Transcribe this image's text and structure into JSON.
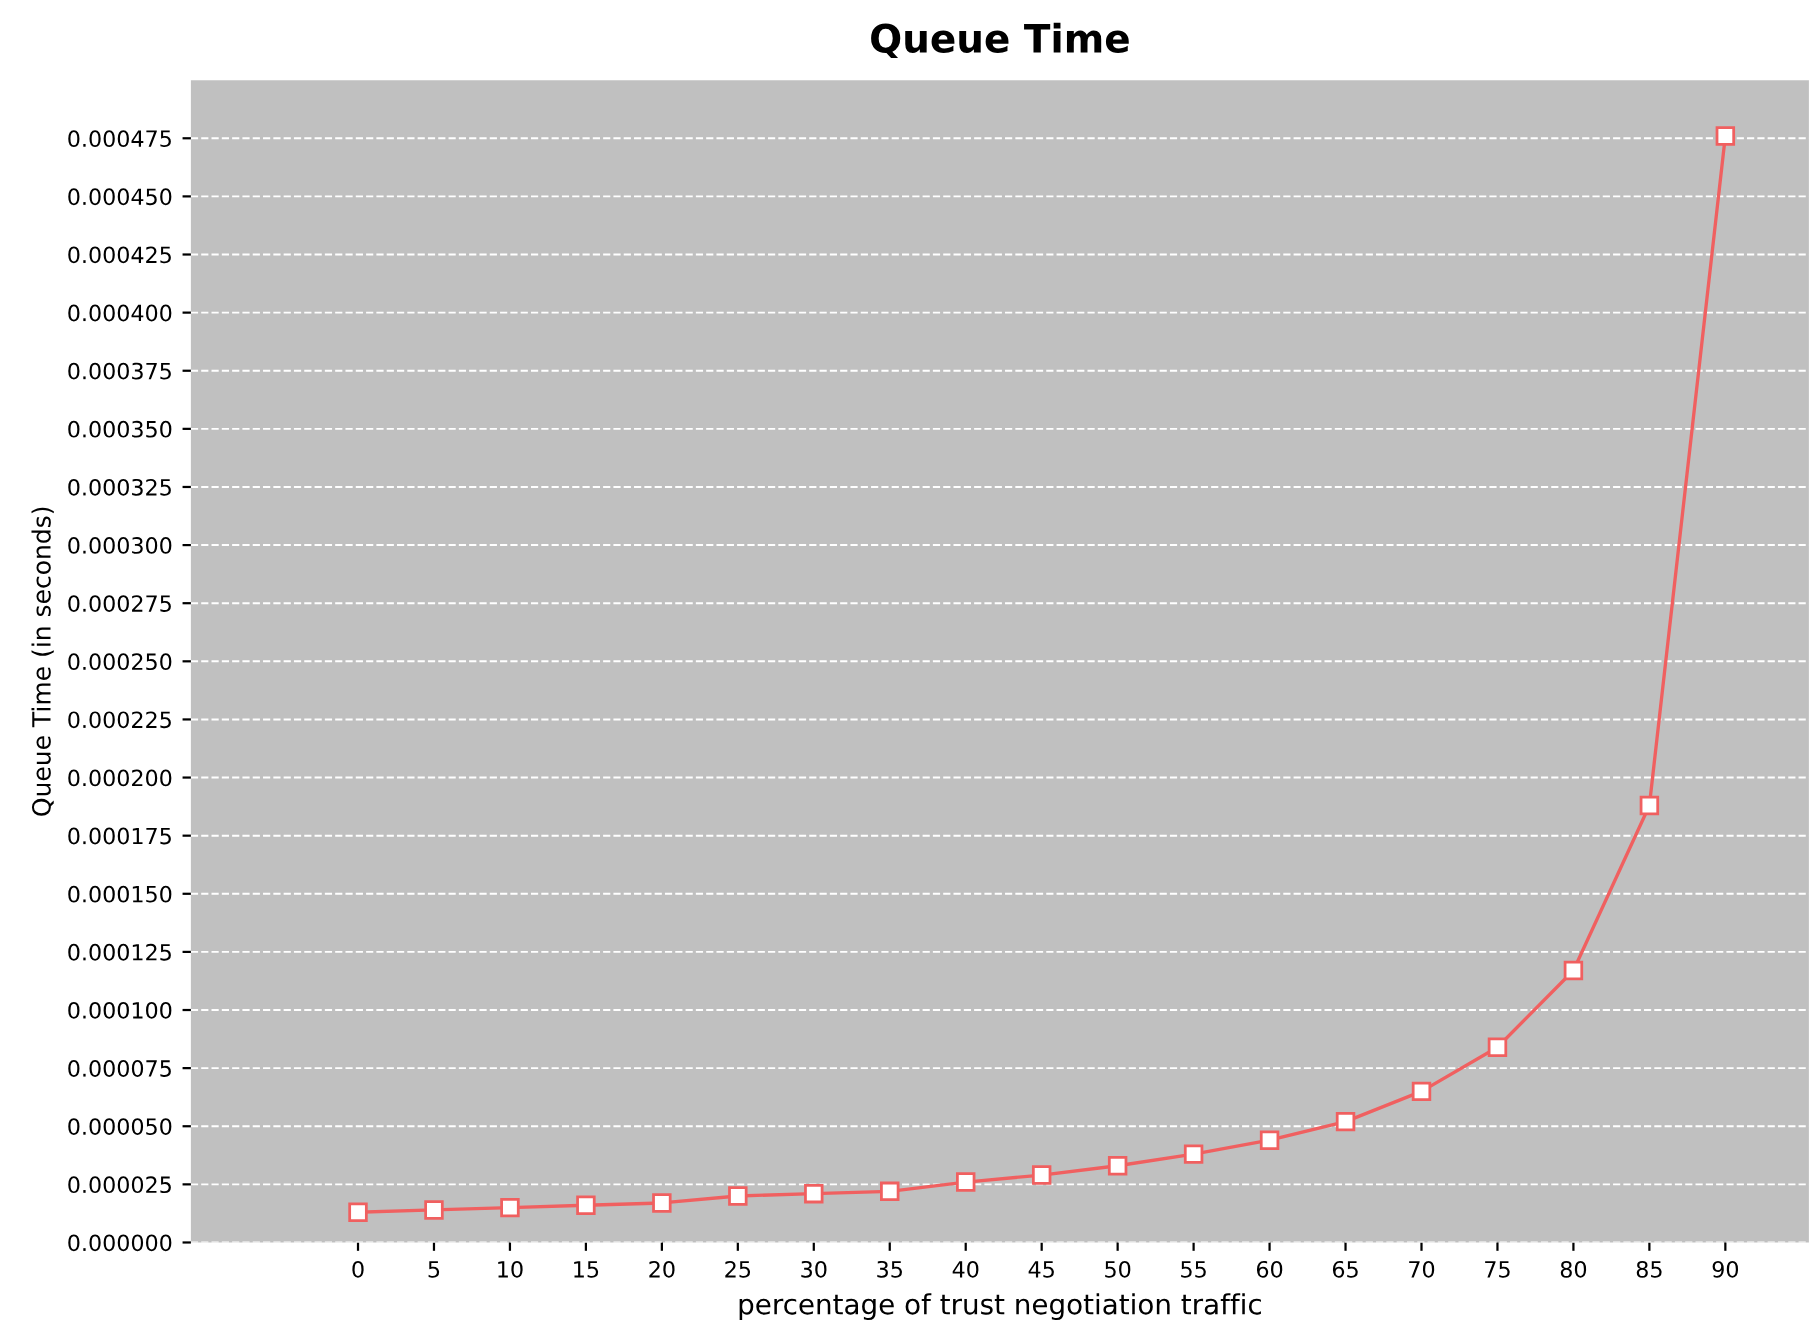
{
  "chart_data": {
    "type": "line",
    "title": "Queue Time",
    "xlabel": "percentage of trust negotiation traffic",
    "ylabel": "Queue Time (in seconds)",
    "categories": [
      "0",
      "5",
      "10",
      "15",
      "20",
      "25",
      "30",
      "35",
      "40",
      "45",
      "50",
      "55",
      "60",
      "65",
      "70",
      "75",
      "80",
      "85",
      "90"
    ],
    "series": [
      {
        "color": "#f06060",
        "values": [
          1.3e-05,
          1.4e-05,
          1.5e-05,
          1.6e-05,
          1.7e-05,
          2e-05,
          2.1e-05,
          2.2e-05,
          2.6e-05,
          2.9e-05,
          3.3e-05,
          3.8e-05,
          4.4e-05,
          5.2e-05,
          6.5e-05,
          8.4e-05,
          0.000117,
          0.000188,
          0.000476
        ]
      }
    ],
    "ylim": [
      0,
      0.0005
    ],
    "yticks": [
      {
        "value": 0,
        "label": "0.000000"
      },
      {
        "value": 2.5e-05,
        "label": "0.000025"
      },
      {
        "value": 5e-05,
        "label": "0.000050"
      },
      {
        "value": 7.5e-05,
        "label": "0.000075"
      },
      {
        "value": 0.0001,
        "label": "0.000100"
      },
      {
        "value": 0.000125,
        "label": "0.000125"
      },
      {
        "value": 0.00015,
        "label": "0.000150"
      },
      {
        "value": 0.000175,
        "label": "0.000175"
      },
      {
        "value": 0.0002,
        "label": "0.000200"
      },
      {
        "value": 0.000225,
        "label": "0.000225"
      },
      {
        "value": 0.00025,
        "label": "0.000250"
      },
      {
        "value": 0.000275,
        "label": "0.000275"
      },
      {
        "value": 0.0003,
        "label": "0.000300"
      },
      {
        "value": 0.000325,
        "label": "0.000325"
      },
      {
        "value": 0.00035,
        "label": "0.000350"
      },
      {
        "value": 0.000375,
        "label": "0.000375"
      },
      {
        "value": 0.0004,
        "label": "0.000400"
      },
      {
        "value": 0.000425,
        "label": "0.000425"
      },
      {
        "value": 0.00045,
        "label": "0.000450"
      },
      {
        "value": 0.000475,
        "label": "0.000475"
      }
    ],
    "grid": "y",
    "marker": "square",
    "line_style": "solid",
    "legend": false
  }
}
